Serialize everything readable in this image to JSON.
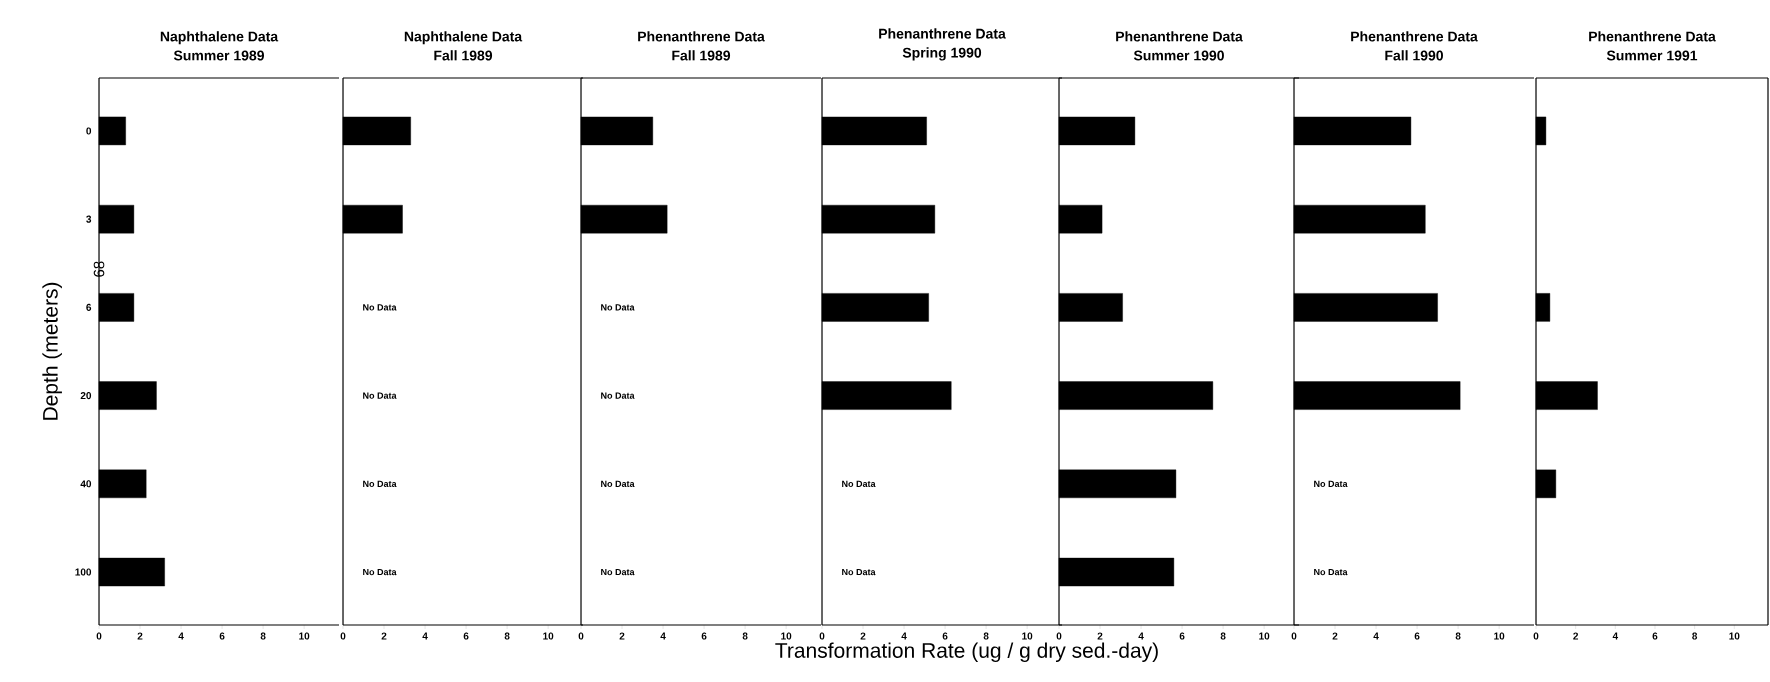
{
  "chart_data": [
    {
      "type": "bar",
      "orientation": "horizontal",
      "title": "Naphthalene Data",
      "subtitle": "Summer 1989",
      "ylabel": "Depth (meters)",
      "annotations": [
        "68"
      ],
      "categories": [
        "0",
        "3",
        "6",
        "20",
        "40",
        "100"
      ],
      "values": [
        1.3,
        1.7,
        1.7,
        2.8,
        2.3,
        3.2
      ],
      "color": "#000000",
      "xlim": [
        0,
        11.7
      ],
      "xticks": [
        0,
        2,
        4,
        6,
        8,
        10
      ]
    },
    {
      "type": "bar",
      "orientation": "horizontal",
      "title": "Naphthalene Data",
      "subtitle": "Fall 1989",
      "categories": [
        "0",
        "3",
        "6",
        "20",
        "40",
        "100"
      ],
      "values": [
        3.3,
        2.9,
        null,
        null,
        null,
        null
      ],
      "value_labels": [
        null,
        null,
        "No Data",
        "No Data",
        "No Data",
        "No Data"
      ],
      "color": "#000000",
      "xlim": [
        0,
        11.7
      ],
      "xticks": [
        0,
        2,
        4,
        6,
        8,
        10
      ],
      "tick_labels": "x"
    },
    {
      "type": "bar",
      "orientation": "horizontal",
      "title": "Phenanthrene Data",
      "subtitle": "Fall 1989",
      "categories": [
        "0",
        "3",
        "6",
        "20",
        "40",
        "100"
      ],
      "values": [
        3.5,
        4.2,
        null,
        null,
        null,
        null
      ],
      "value_labels": [
        null,
        null,
        "No Data",
        "No Data",
        "No Data",
        "No Data"
      ],
      "color": "#000000",
      "xlim": [
        0,
        11.7
      ],
      "xticks": [
        0,
        2,
        4,
        6,
        8,
        10
      ],
      "tick_labels": "x"
    },
    {
      "type": "bar",
      "orientation": "horizontal",
      "title": "Phenanthrene Data",
      "subtitle": "Spring 1990",
      "xlabel": "Transformation Rate (ug / g dry sed.-day)",
      "categories": [
        "0",
        "3",
        "6",
        "20",
        "40",
        "100"
      ],
      "values": [
        5.1,
        5.5,
        5.2,
        6.3,
        null,
        null
      ],
      "value_labels": [
        null,
        null,
        null,
        null,
        "No Data",
        "No Data"
      ],
      "color": "#000000",
      "xlim": [
        0,
        11.7
      ],
      "xticks": [
        0,
        2,
        4,
        6,
        8,
        10
      ],
      "tick_labels": "x"
    },
    {
      "type": "bar",
      "orientation": "horizontal",
      "title": "Phenanthrene Data",
      "subtitle": "Summer 1990",
      "categories": [
        "0",
        "3",
        "6",
        "20",
        "40",
        "100"
      ],
      "values": [
        3.7,
        2.1,
        3.1,
        7.5,
        5.7,
        5.6
      ],
      "color": "#000000",
      "xlim": [
        0,
        11.7
      ],
      "xticks": [
        0,
        2,
        4,
        6,
        8,
        10
      ],
      "tick_labels": "x"
    },
    {
      "type": "bar",
      "orientation": "horizontal",
      "title": "Phenanthrene Data",
      "subtitle": "Fall 1990",
      "categories": [
        "0",
        "3",
        "6",
        "20",
        "40",
        "100"
      ],
      "values": [
        5.7,
        6.4,
        7.0,
        8.1,
        null,
        null
      ],
      "value_labels": [
        null,
        null,
        null,
        null,
        "No Data",
        "No Data"
      ],
      "color": "#000000",
      "xlim": [
        0,
        11.7
      ],
      "xticks": [
        0,
        2,
        4,
        6,
        8,
        10
      ],
      "tick_labels": "x"
    },
    {
      "type": "bar",
      "orientation": "horizontal",
      "title": "Phenanthrene Data",
      "subtitle": "Summer 1991",
      "categories": [
        "0",
        "3",
        "6",
        "20",
        "40",
        "100"
      ],
      "values": [
        0.5,
        null,
        0.7,
        3.1,
        1.0,
        null
      ],
      "color": "#000000",
      "xlim": [
        0,
        11.7
      ],
      "xticks": [
        0,
        2,
        4,
        6,
        8,
        10
      ],
      "tick_labels": "x"
    }
  ]
}
